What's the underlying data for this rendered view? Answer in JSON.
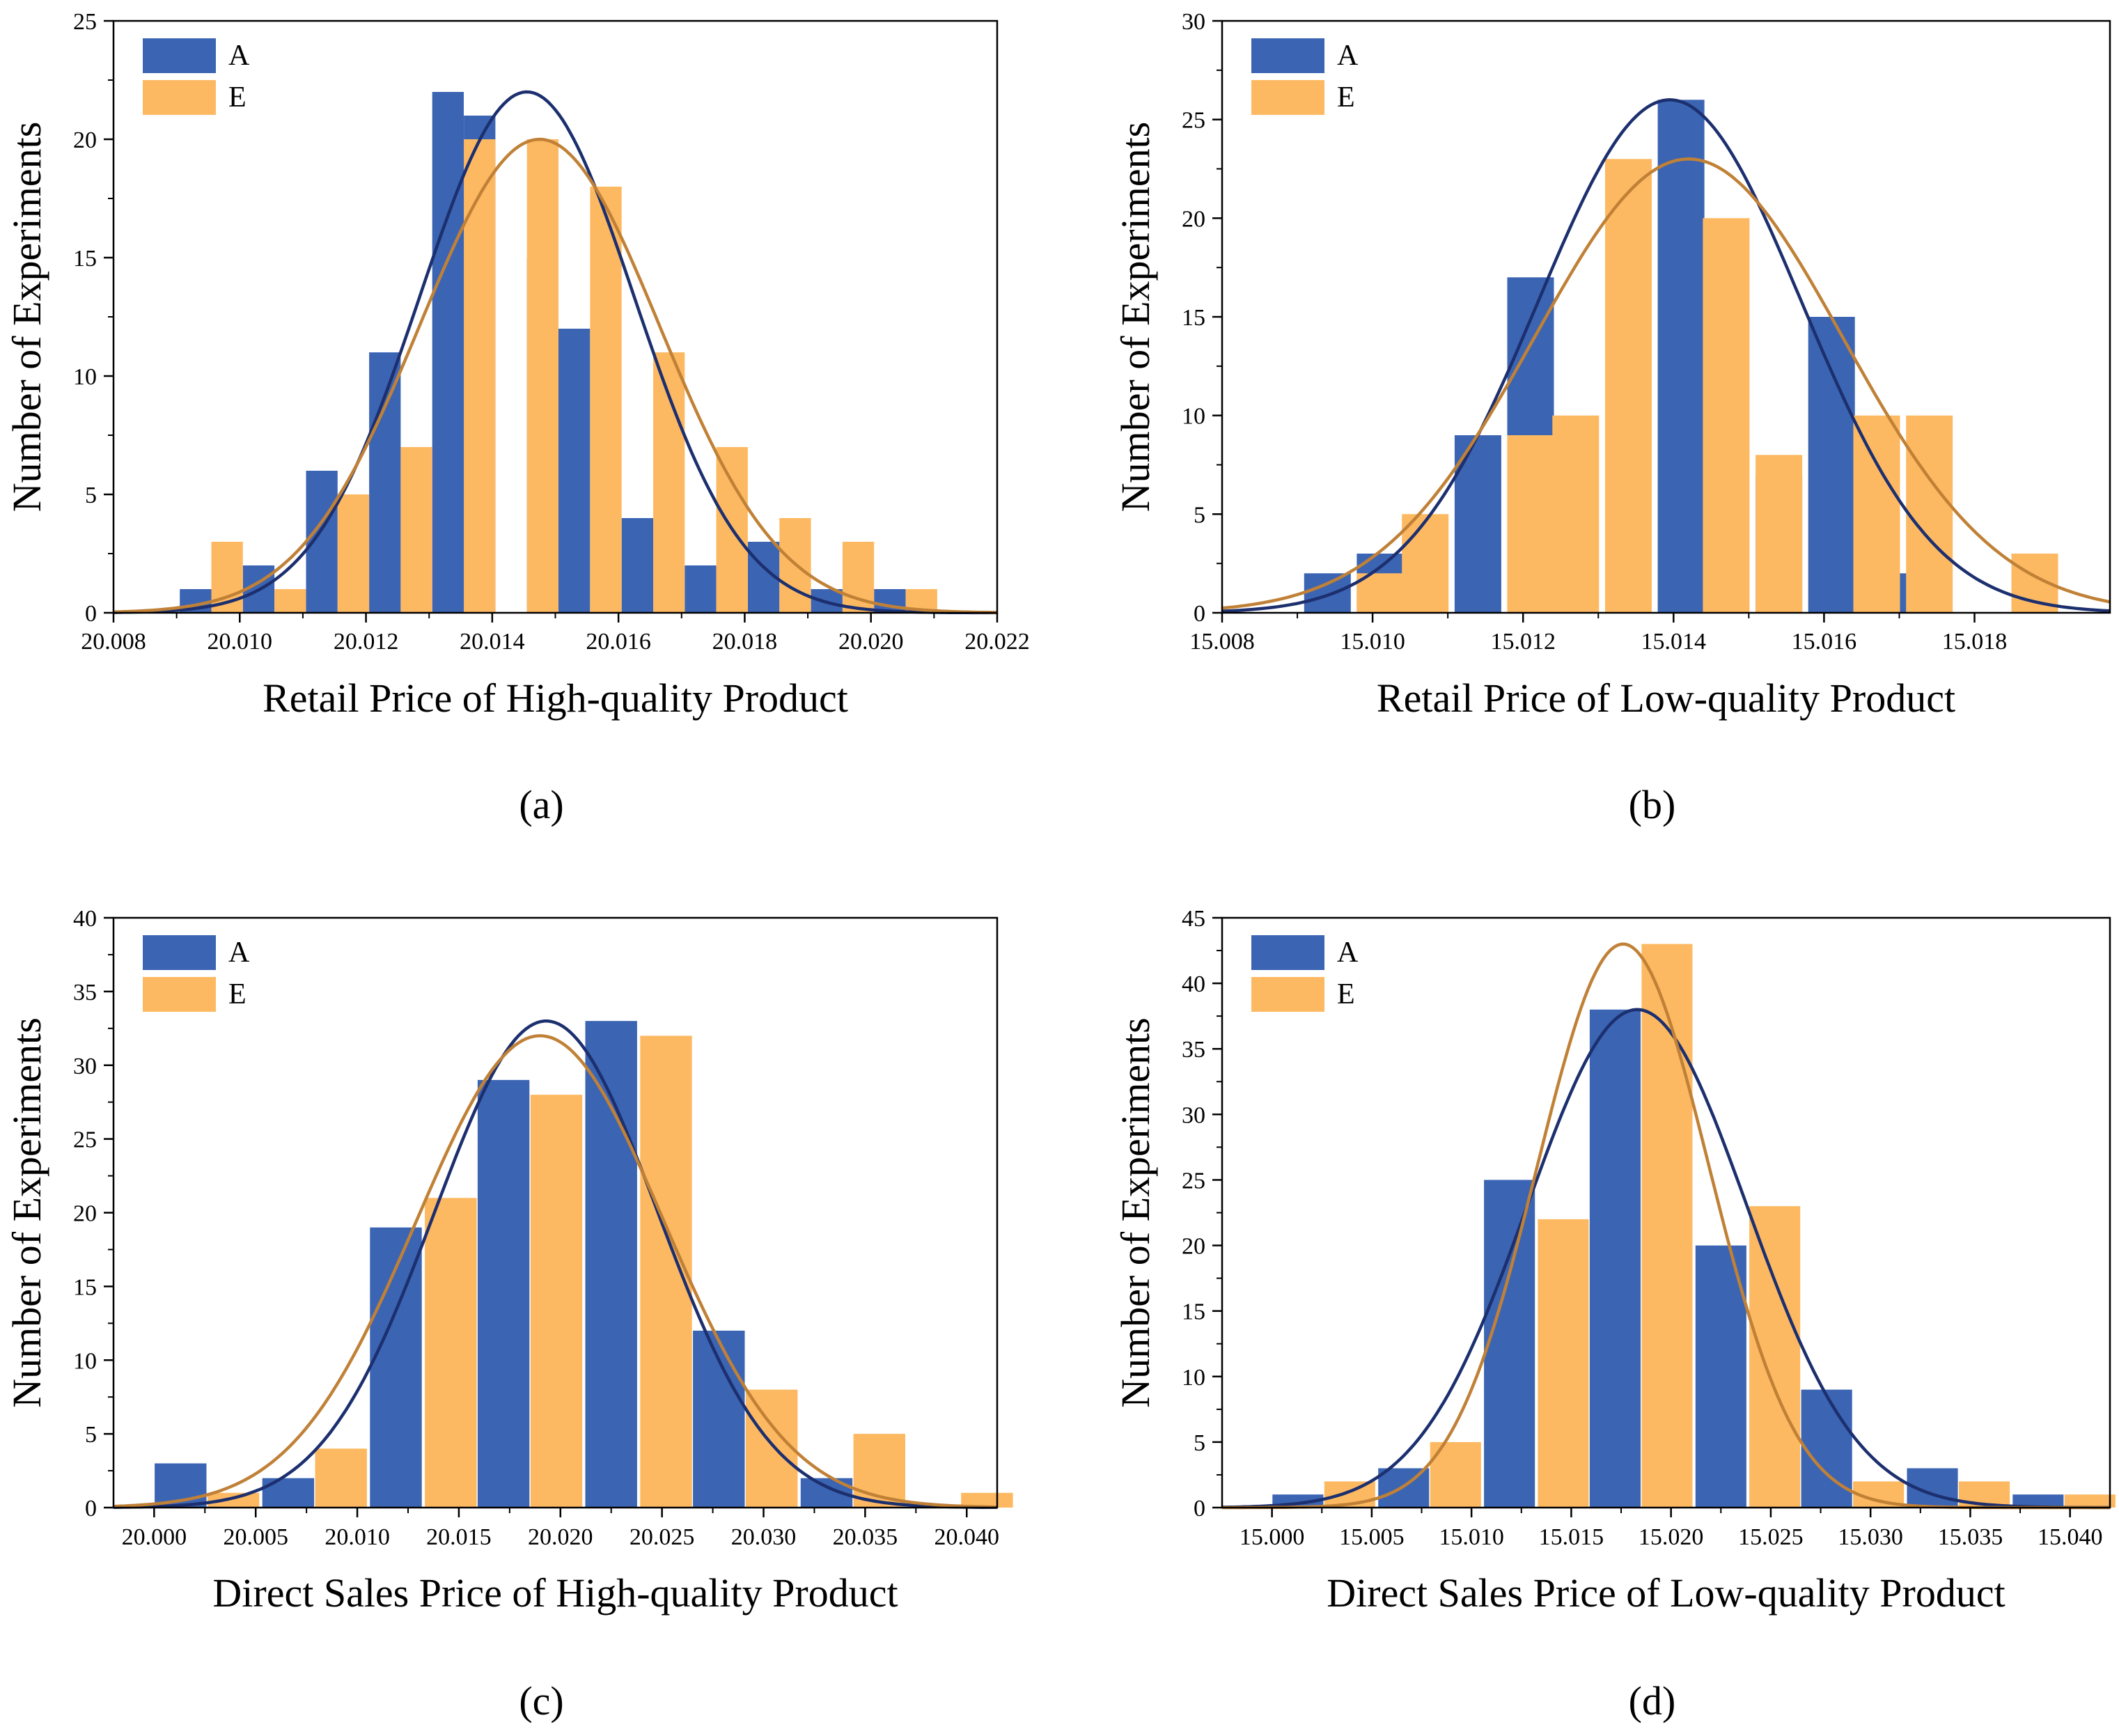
{
  "colors": {
    "A": "#3b64b3",
    "E": "#fdb962",
    "curveA": "#1c2f6e",
    "curveE": "#c08137"
  },
  "chart_data": [
    {
      "type": "bar",
      "panel_label": "(a)",
      "xlabel": "Retail Price of High-quality Product",
      "ylabel": "Number of Experiments",
      "xlim": [
        20.008,
        20.022
      ],
      "ylim": [
        0,
        25
      ],
      "xticks": [
        "20.008",
        "20.010",
        "20.012",
        "20.014",
        "20.016",
        "20.018",
        "20.020",
        "20.022"
      ],
      "yticks": [
        "0",
        "5",
        "10",
        "15",
        "20",
        "25"
      ],
      "legend": [
        "A",
        "E"
      ],
      "legend_position": "top-left",
      "bin_width": 0.0005,
      "series": [
        {
          "name": "A",
          "centers": [
            20.0093,
            20.0103,
            20.0113,
            20.0123,
            20.0133,
            20.0138,
            20.0148,
            20.0153,
            20.0163,
            20.0173,
            20.0183,
            20.0193,
            20.0203
          ],
          "values": [
            1,
            2,
            6,
            11,
            22,
            21,
            15,
            12,
            4,
            2,
            3,
            1,
            1
          ]
        },
        {
          "name": "E",
          "centers": [
            20.0098,
            20.0108,
            20.0118,
            20.0128,
            20.0138,
            20.0148,
            20.0158,
            20.0168,
            20.0178,
            20.0188,
            20.0198,
            20.0208
          ],
          "values": [
            3,
            1,
            5,
            7,
            20,
            20,
            18,
            11,
            7,
            4,
            3,
            1
          ]
        }
      ],
      "curves": [
        {
          "name": "A",
          "mean": 20.01455,
          "sd": 0.0017,
          "peak": 22
        },
        {
          "name": "E",
          "mean": 20.01475,
          "sd": 0.0019,
          "peak": 20
        }
      ]
    },
    {
      "type": "bar",
      "panel_label": "(b)",
      "xlabel": "Retail Price of Low-quality Product",
      "ylabel": "Number of Experiments",
      "xlim": [
        15.008,
        15.0198
      ],
      "ylim": [
        0,
        30
      ],
      "xticks": [
        "15.008",
        "15.010",
        "15.012",
        "15.014",
        "15.016",
        "15.018"
      ],
      "yticks": [
        "0",
        "5",
        "10",
        "15",
        "20",
        "25",
        "30"
      ],
      "legend": [
        "A",
        "E"
      ],
      "legend_position": "top-left",
      "bin_width": 0.00062,
      "series": [
        {
          "name": "A",
          "centers": [
            15.0094,
            15.0101,
            15.0114,
            15.0121,
            15.0134,
            15.0141,
            15.0154,
            15.0161,
            15.0168
          ],
          "values": [
            2,
            3,
            9,
            17,
            19,
            26,
            7,
            15,
            2
          ]
        },
        {
          "name": "E",
          "centers": [
            15.0101,
            15.0107,
            15.0121,
            15.0127,
            15.0134,
            15.0147,
            15.0154,
            15.0167,
            15.0174,
            15.0188
          ],
          "values": [
            2,
            5,
            9,
            10,
            23,
            20,
            8,
            10,
            10,
            3
          ]
        }
      ],
      "curves": [
        {
          "name": "A",
          "mean": 15.01395,
          "sd": 0.00175,
          "peak": 26
        },
        {
          "name": "E",
          "mean": 15.0142,
          "sd": 0.00205,
          "peak": 23
        }
      ]
    },
    {
      "type": "bar",
      "panel_label": "(c)",
      "xlabel": "Direct Sales Price of High-quality Product",
      "ylabel": "Number of Experiments",
      "xlim": [
        19.998,
        20.0415
      ],
      "ylim": [
        0,
        40
      ],
      "xticks": [
        "20.000",
        "20.005",
        "20.010",
        "20.015",
        "20.020",
        "20.025",
        "20.030",
        "20.035",
        "20.040"
      ],
      "yticks": [
        "0",
        "5",
        "10",
        "15",
        "20",
        "25",
        "30",
        "35",
        "40"
      ],
      "legend": [
        "A",
        "E"
      ],
      "legend_position": "top-left",
      "bin_width": 0.00255,
      "series": [
        {
          "name": "A",
          "centers": [
            20.0013,
            20.0066,
            20.0119,
            20.0172,
            20.0225,
            20.0278,
            20.0331
          ],
          "values": [
            3,
            2,
            19,
            29,
            33,
            12,
            2
          ]
        },
        {
          "name": "E",
          "centers": [
            20.0039,
            20.0092,
            20.0146,
            20.0198,
            20.0252,
            20.0304,
            20.0357,
            20.041
          ],
          "values": [
            1,
            4,
            21,
            28,
            32,
            8,
            5,
            1
          ]
        }
      ],
      "curves": [
        {
          "name": "A",
          "mean": 20.0193,
          "sd": 0.0055,
          "peak": 33
        },
        {
          "name": "E",
          "mean": 20.019,
          "sd": 0.0061,
          "peak": 32
        }
      ]
    },
    {
      "type": "bar",
      "panel_label": "(d)",
      "xlabel": "Direct Sales Price of Low-quality Product",
      "ylabel": "Number of Experiments",
      "xlim": [
        14.9975,
        15.042
      ],
      "ylim": [
        0,
        45
      ],
      "xticks": [
        "15.000",
        "15.005",
        "15.010",
        "15.015",
        "15.020",
        "15.025",
        "15.030",
        "15.035",
        "15.040"
      ],
      "yticks": [
        "0",
        "5",
        "10",
        "15",
        "20",
        "25",
        "30",
        "35",
        "40",
        "45"
      ],
      "legend": [
        "A",
        "E"
      ],
      "legend_position": "top-left",
      "bin_width": 0.00255,
      "series": [
        {
          "name": "A",
          "centers": [
            15.0013,
            15.0066,
            15.0119,
            15.0172,
            15.0225,
            15.0278,
            15.0331,
            15.0384
          ],
          "values": [
            1,
            3,
            25,
            38,
            20,
            9,
            3,
            1
          ]
        },
        {
          "name": "E",
          "centers": [
            15.0039,
            15.0092,
            15.0146,
            15.0198,
            15.0252,
            15.0304,
            15.0357,
            15.041
          ],
          "values": [
            2,
            5,
            22,
            43,
            23,
            2,
            2,
            1
          ]
        }
      ],
      "curves": [
        {
          "name": "A",
          "mean": 15.0183,
          "sd": 0.0055,
          "peak": 38
        },
        {
          "name": "E",
          "mean": 15.0176,
          "sd": 0.0043,
          "peak": 43
        }
      ]
    }
  ]
}
